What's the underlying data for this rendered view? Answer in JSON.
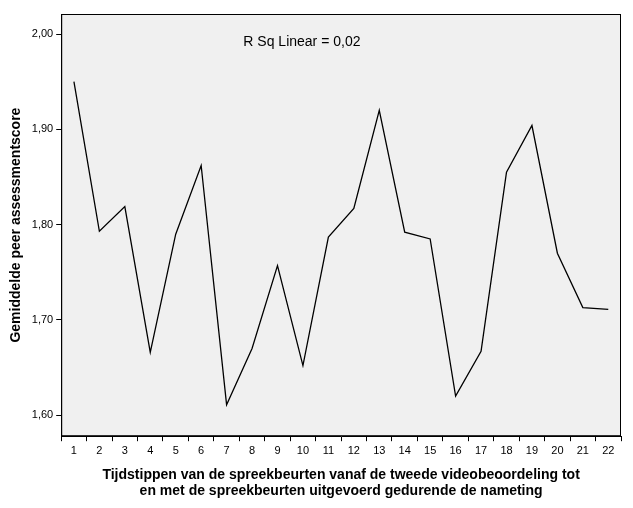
{
  "chart_data": {
    "type": "line",
    "annotation": "R Sq Linear = 0,02",
    "x_label": [
      "Tijdstippen van de spreekbeurten vanaf de tweede videobeoordeling tot",
      "en met de spreekbeurten uitgevoerd gedurende de nameting"
    ],
    "y_label": "Gemiddelde peer assessmentscore",
    "categories": [
      "1",
      "2",
      "3",
      "4",
      "5",
      "6",
      "7",
      "8",
      "9",
      "10",
      "11",
      "12",
      "13",
      "14",
      "15",
      "16",
      "17",
      "18",
      "19",
      "20",
      "21",
      "22"
    ],
    "values": [
      1.95,
      1.793,
      1.819,
      1.666,
      1.79,
      1.862,
      1.611,
      1.67,
      1.757,
      1.652,
      1.787,
      1.817,
      1.92,
      1.792,
      1.785,
      1.62,
      1.667,
      1.855,
      1.904,
      1.77,
      1.713,
      1.711
    ],
    "color": "#000000",
    "ylim": [
      1.578,
      2.021
    ],
    "yticks": [
      {
        "value": 1.6,
        "label": "1,60"
      },
      {
        "value": 1.7,
        "label": "1,70"
      },
      {
        "value": 1.8,
        "label": "1,80"
      },
      {
        "value": 1.9,
        "label": "1,90"
      },
      {
        "value": 2.0,
        "label": "2,00"
      }
    ],
    "grid": false
  }
}
